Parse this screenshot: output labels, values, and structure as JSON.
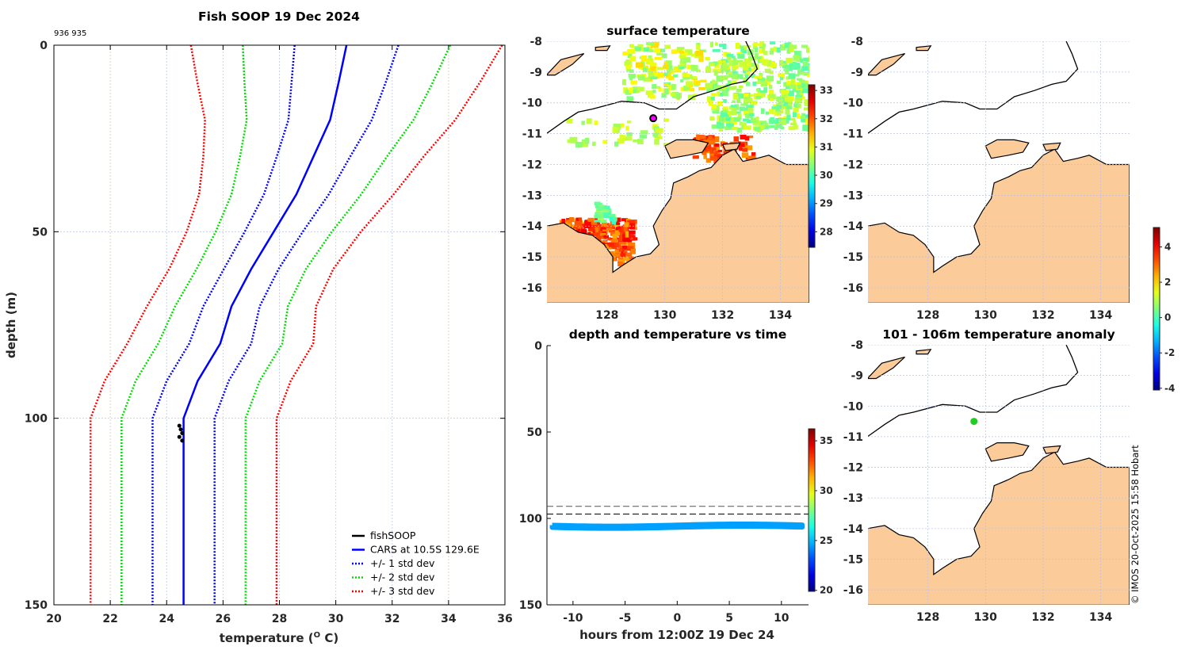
{
  "chart_data": [
    {
      "type": "line",
      "title": "Fish SOOP 19 Dec 2024",
      "corner_note": "936 935",
      "xlabel": "temperature (",
      "xlabel_sup": "O",
      "xlabel_end": " C)",
      "ylabel": "depth (m)",
      "xlim": [
        20,
        36
      ],
      "ylim": [
        0,
        150
      ],
      "y_reversed": true,
      "xticks": [
        "20",
        "22",
        "24",
        "26",
        "28",
        "30",
        "32",
        "34",
        "36"
      ],
      "yticks": [
        "0",
        "50",
        "100",
        "150"
      ],
      "grid": true,
      "legend_position": "bottom-right",
      "legend": [
        "fishSOOP",
        "CARS at 10.5S 129.6E",
        "+/- 1 std dev",
        "+/- 2 std dev",
        "+/- 3 std dev"
      ],
      "depth": [
        0,
        10,
        20,
        30,
        40,
        50,
        60,
        70,
        80,
        90,
        100,
        150
      ],
      "cars_temperature": [
        30.38,
        30.1,
        29.8,
        29.2,
        28.6,
        27.8,
        27.0,
        26.3,
        25.9,
        25.1,
        24.6,
        24.6
      ],
      "std_dev": [
        1.84,
        1.67,
        1.48,
        1.3,
        1.15,
        1.03,
        0.97,
        1.0,
        1.1,
        1.1,
        1.1,
        1.1
      ],
      "fishsoop": {
        "depth": [
          102,
          103,
          104,
          105,
          106
        ],
        "temperature": [
          24.45,
          24.5,
          24.55,
          24.45,
          24.55
        ]
      },
      "colors": {
        "fishSOOP": "#000000",
        "CARS": "#0000ff",
        "std1": "#0000ff",
        "std2": "#00dd00",
        "std3": "#ff0000"
      }
    },
    {
      "type": "map",
      "title": "surface temperature",
      "xlim": [
        125.92,
        135.0
      ],
      "ylim": [
        -16.49,
        -8
      ],
      "xticks": [
        "128",
        "130",
        "132",
        "134"
      ],
      "yticks": [
        "-8",
        "-9",
        "-10",
        "-11",
        "-12",
        "-13",
        "-14",
        "-15",
        "-16"
      ],
      "colorbar": {
        "range": [
          27.45,
          33.2
        ],
        "ticks": [
          "28",
          "29",
          "30",
          "31",
          "32",
          "33"
        ]
      },
      "station": {
        "lon": 129.6,
        "lat": -10.5,
        "color": "#ff00ff"
      }
    },
    {
      "type": "map",
      "title": "",
      "xlim": [
        125.92,
        135.0
      ],
      "ylim": [
        -16.49,
        -8
      ],
      "xticks": [
        "128",
        "130",
        "132",
        "134"
      ],
      "yticks": [
        "-8",
        "-9",
        "-10",
        "-11",
        "-12",
        "-13",
        "-14",
        "-15",
        "-16"
      ]
    },
    {
      "type": "scatter",
      "title": "depth and temperature vs time",
      "xlabel": "hours from 12:00Z 19 Dec 24",
      "xlim": [
        -12.5,
        12.6
      ],
      "ylim": [
        0,
        150
      ],
      "y_reversed": true,
      "xticks": [
        "-10",
        "-5",
        "0",
        "5",
        "10"
      ],
      "yticks": [
        "0",
        "50",
        "100",
        "150"
      ],
      "reference_depths": [
        93,
        97.5
      ],
      "series_depth_range": [
        103,
        106
      ],
      "series_temperature": 24.5,
      "colorbar": {
        "range": [
          19.9,
          36.2
        ],
        "ticks": [
          "20",
          "25",
          "30",
          "35"
        ]
      }
    },
    {
      "type": "map",
      "title": "101 - 106m temperature anomaly",
      "xlim": [
        125.92,
        135.0
      ],
      "ylim": [
        -16.49,
        -8
      ],
      "xticks": [
        "128",
        "130",
        "132",
        "134"
      ],
      "yticks": [
        "-8",
        "-9",
        "-10",
        "-11",
        "-12",
        "-13",
        "-14",
        "-15",
        "-16"
      ],
      "colorbar": {
        "range": [
          -4.1,
          5.1
        ],
        "ticks": [
          "-4",
          "-2",
          "0",
          "2",
          "4"
        ]
      },
      "station": {
        "lon": 129.6,
        "lat": -10.5,
        "color": "#22cc22"
      }
    }
  ],
  "credit": "© IMOS 20-Oct-2025 15:58 Hobart",
  "colors": {
    "land": "#fbcb9a",
    "coast": "#000000"
  }
}
